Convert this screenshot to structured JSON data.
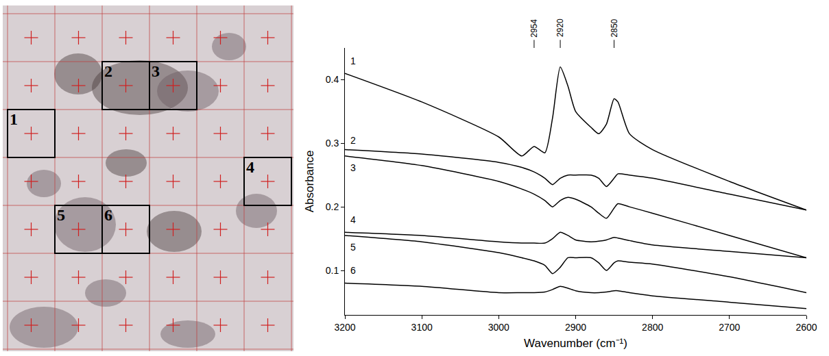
{
  "image_panel": {
    "regions": [
      "1",
      "2",
      "3",
      "4",
      "5",
      "6"
    ]
  },
  "chart_data": {
    "type": "line",
    "x_label": "Wavenumber (cm⁻¹)",
    "y_label": "Absorbance",
    "xlim": [
      3200,
      2600
    ],
    "xticks": [
      3200,
      3100,
      3000,
      2900,
      2800,
      2700,
      2600
    ],
    "ylim": [
      0.03,
      0.45
    ],
    "yticks": [
      0.1,
      0.2,
      0.3,
      0.4
    ],
    "grid": false,
    "x": [
      3200,
      3100,
      3000,
      2970,
      2954,
      2940,
      2930,
      2920,
      2910,
      2900,
      2880,
      2870,
      2860,
      2850,
      2845,
      2830,
      2800,
      2700,
      2600
    ],
    "series": [
      {
        "name": "1",
        "color": "#000000",
        "values": [
          0.41,
          0.365,
          0.31,
          0.28,
          0.295,
          0.285,
          0.34,
          0.42,
          0.39,
          0.35,
          0.325,
          0.315,
          0.33,
          0.37,
          0.365,
          0.315,
          0.29,
          0.24,
          0.195
        ]
      },
      {
        "name": "2",
        "color": "#000000",
        "values": [
          0.29,
          0.283,
          0.27,
          0.262,
          0.255,
          0.245,
          0.235,
          0.245,
          0.25,
          0.25,
          0.25,
          0.245,
          0.232,
          0.245,
          0.252,
          0.25,
          0.245,
          0.22,
          0.195
        ]
      },
      {
        "name": "3",
        "color": "#000000",
        "values": [
          0.28,
          0.265,
          0.24,
          0.228,
          0.22,
          0.21,
          0.2,
          0.21,
          0.215,
          0.212,
          0.2,
          0.19,
          0.182,
          0.198,
          0.205,
          0.2,
          0.19,
          0.155,
          0.12
        ]
      },
      {
        "name": "4",
        "color": "#000000",
        "values": [
          0.16,
          0.155,
          0.145,
          0.143,
          0.143,
          0.143,
          0.15,
          0.16,
          0.155,
          0.148,
          0.145,
          0.146,
          0.148,
          0.152,
          0.151,
          0.147,
          0.14,
          0.13,
          0.12
        ]
      },
      {
        "name": "5",
        "color": "#000000",
        "values": [
          0.155,
          0.145,
          0.128,
          0.12,
          0.115,
          0.108,
          0.095,
          0.105,
          0.12,
          0.12,
          0.12,
          0.112,
          0.1,
          0.112,
          0.115,
          0.113,
          0.11,
          0.09,
          0.065
        ]
      },
      {
        "name": "6",
        "color": "#000000",
        "values": [
          0.08,
          0.075,
          0.065,
          0.065,
          0.065,
          0.066,
          0.07,
          0.075,
          0.072,
          0.068,
          0.065,
          0.065,
          0.066,
          0.068,
          0.068,
          0.065,
          0.06,
          0.05,
          0.04
        ]
      }
    ],
    "annotations": [
      {
        "x": 2954,
        "text": "2954"
      },
      {
        "x": 2920,
        "text": "2920"
      },
      {
        "x": 2850,
        "text": "2850"
      }
    ]
  }
}
